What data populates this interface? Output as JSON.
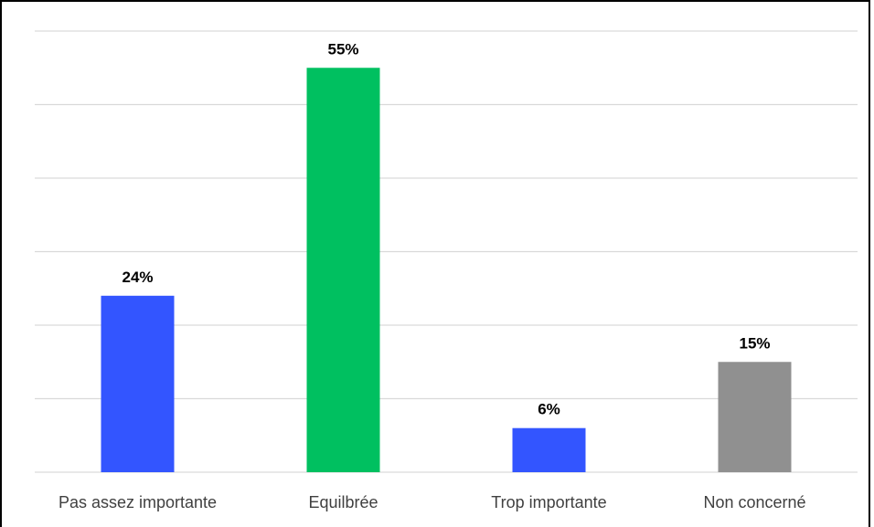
{
  "chart_data": {
    "type": "bar",
    "categories": [
      "Pas assez importante",
      "Equilbrée",
      "Trop importante",
      "Non concerné"
    ],
    "values": [
      24,
      55,
      6,
      15
    ],
    "value_labels": [
      "24%",
      "55%",
      "6%",
      "15%"
    ],
    "colors": [
      "#3355ff",
      "#00c060",
      "#3355ff",
      "#909090"
    ],
    "ylim": [
      0,
      60
    ],
    "grid": true,
    "title": "",
    "xlabel": "",
    "ylabel": ""
  }
}
